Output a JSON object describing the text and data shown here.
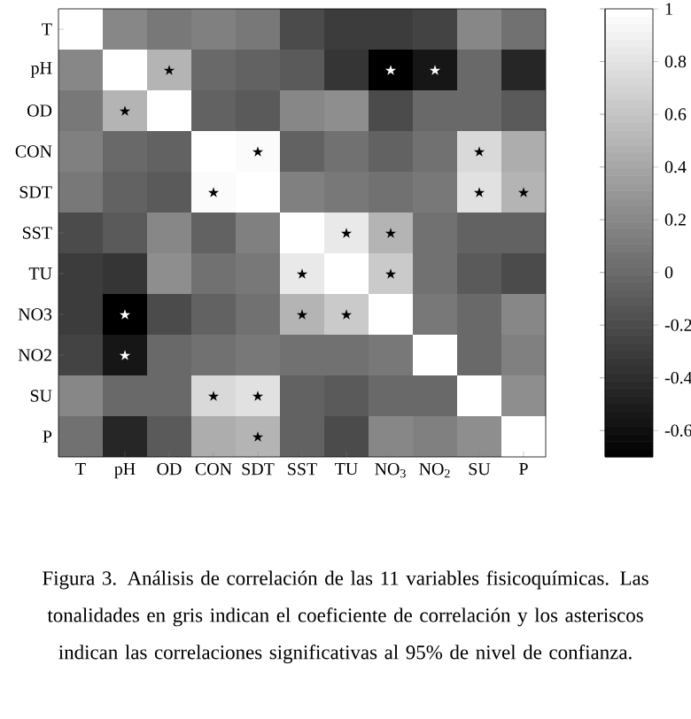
{
  "chart_data": {
    "type": "heatmap",
    "categories": [
      "T",
      "pH",
      "OD",
      "CON",
      "SDT",
      "SST",
      "TU",
      "NO$_{3}$",
      "NO$_{2}$",
      "SU",
      "P"
    ],
    "y_categories": [
      "T",
      "pH",
      "OD",
      "CON",
      "SDT",
      "SST",
      "TU",
      "NO3",
      "NO2",
      "SU",
      "P"
    ],
    "cells": [
      [
        1,
        0.2,
        0.1,
        0.15,
        0.1,
        -0.2,
        -0.3,
        -0.3,
        -0.25,
        0.2,
        0.05
      ],
      [
        0.2,
        1,
        0.5,
        0.0,
        -0.05,
        -0.1,
        -0.35,
        -0.7,
        -0.55,
        0.0,
        -0.45
      ],
      [
        0.1,
        0.5,
        1,
        -0.05,
        -0.1,
        0.2,
        0.25,
        -0.2,
        0.0,
        0.0,
        -0.1
      ],
      [
        0.15,
        0.0,
        -0.05,
        1,
        0.97,
        -0.05,
        0.05,
        -0.05,
        0.05,
        0.75,
        0.45
      ],
      [
        0.1,
        -0.05,
        -0.1,
        0.97,
        1,
        0.15,
        0.1,
        0.05,
        0.1,
        0.8,
        0.5
      ],
      [
        -0.2,
        -0.1,
        0.2,
        -0.05,
        0.15,
        1,
        0.85,
        0.5,
        0.05,
        -0.05,
        -0.05
      ],
      [
        -0.3,
        -0.35,
        0.25,
        0.05,
        0.1,
        0.85,
        1,
        0.65,
        0.05,
        -0.1,
        -0.2
      ],
      [
        -0.3,
        -0.7,
        -0.2,
        -0.05,
        0.05,
        0.5,
        0.65,
        1,
        0.1,
        0.0,
        0.2
      ],
      [
        -0.25,
        -0.55,
        0.0,
        0.05,
        0.1,
        0.05,
        0.05,
        0.1,
        1,
        0.0,
        0.15
      ],
      [
        0.2,
        0.0,
        0.0,
        0.75,
        0.8,
        -0.05,
        -0.1,
        0.0,
        0.0,
        1,
        0.25
      ],
      [
        0.05,
        -0.45,
        -0.1,
        0.45,
        0.5,
        -0.05,
        -0.2,
        0.2,
        0.15,
        0.25,
        1
      ]
    ],
    "cell_labels": [
      [
        null,
        null,
        null,
        null,
        null,
        null,
        null,
        null,
        null,
        null,
        null
      ],
      [
        null,
        null,
        "★",
        null,
        null,
        null,
        null,
        "★",
        "★",
        null,
        null
      ],
      [
        null,
        "★",
        null,
        null,
        null,
        null,
        null,
        null,
        null,
        null,
        null
      ],
      [
        null,
        null,
        null,
        null,
        "★",
        null,
        null,
        null,
        null,
        "★",
        null
      ],
      [
        null,
        null,
        null,
        "★",
        null,
        null,
        null,
        null,
        null,
        "★",
        "★"
      ],
      [
        null,
        null,
        null,
        null,
        null,
        null,
        "★",
        "★",
        null,
        null,
        null
      ],
      [
        null,
        null,
        null,
        null,
        null,
        "★",
        null,
        "★",
        null,
        null,
        null
      ],
      [
        null,
        "★",
        null,
        null,
        null,
        "★",
        "★",
        null,
        null,
        null,
        null
      ],
      [
        null,
        "★",
        null,
        null,
        null,
        null,
        null,
        null,
        null,
        null,
        null
      ],
      [
        null,
        null,
        null,
        "★",
        "★",
        null,
        null,
        null,
        null,
        null,
        null
      ],
      [
        null,
        null,
        null,
        null,
        "★",
        null,
        null,
        null,
        null,
        null,
        null
      ]
    ],
    "clim": [
      -0.7,
      1
    ],
    "cticks": [
      -0.6,
      -0.4,
      -0.2,
      0,
      0.2,
      0.4,
      0.6,
      0.8,
      1
    ],
    "annotations": [
      "Figura 3. Análisis de correlación de las 11 variables fisicoquímicas. Las tonalidades en gris indican el coeficiente de correlación y los asteriscos indican las correlaciones significativas al 95% de nivel de confianza."
    ]
  }
}
